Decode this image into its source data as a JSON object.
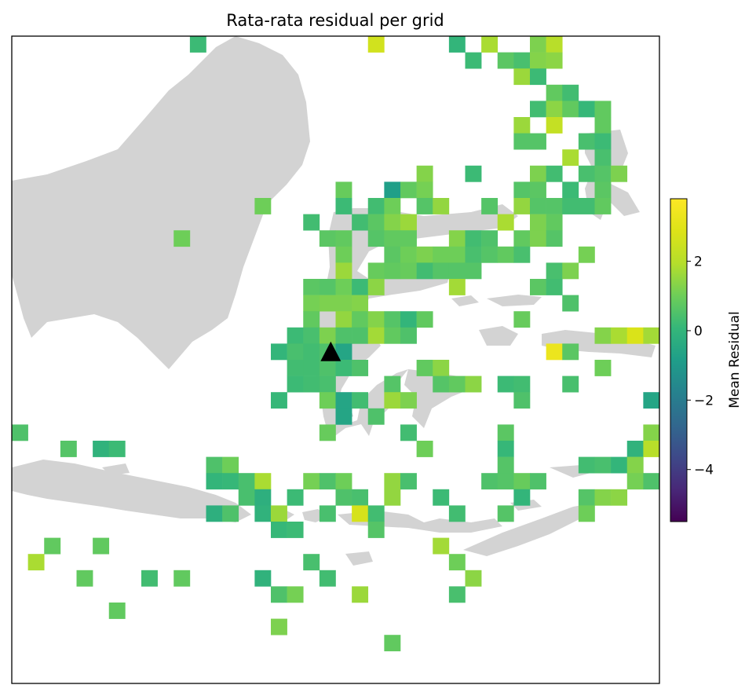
{
  "chart_data": {
    "type": "heatmap",
    "title": "Rata-rata residual per grid",
    "colorbar": {
      "label": "Mean Residual",
      "vmin": -5.5,
      "vmax": 3.8,
      "ticks": [
        2,
        0,
        -2,
        -4
      ],
      "tick_labels": [
        "2",
        "0",
        "−2",
        "−4"
      ],
      "colormap": "viridis"
    },
    "grid": {
      "cols": 40,
      "rows": 40,
      "cells": [
        [
          11,
          0,
          0.2
        ],
        [
          22,
          0,
          2.6
        ],
        [
          27,
          0,
          0.0
        ],
        [
          29,
          0,
          1.8
        ],
        [
          32,
          0,
          1.2
        ],
        [
          33,
          0,
          2.0
        ],
        [
          28,
          1,
          0.2
        ],
        [
          30,
          1,
          0.7
        ],
        [
          31,
          1,
          0.4
        ],
        [
          32,
          1,
          1.3
        ],
        [
          33,
          1,
          1.4
        ],
        [
          31,
          2,
          1.6
        ],
        [
          32,
          2,
          0.2
        ],
        [
          33,
          3,
          0.8
        ],
        [
          34,
          3,
          0.3
        ],
        [
          32,
          4,
          0.3
        ],
        [
          33,
          4,
          1.4
        ],
        [
          34,
          4,
          0.8
        ],
        [
          35,
          4,
          0.1
        ],
        [
          36,
          4,
          0.8
        ],
        [
          33,
          5,
          2.3
        ],
        [
          31,
          5,
          1.6
        ],
        [
          36,
          5,
          0.8
        ],
        [
          31,
          6,
          0.6
        ],
        [
          32,
          6,
          0.6
        ],
        [
          35,
          6,
          0.4
        ],
        [
          36,
          6,
          0.2
        ],
        [
          34,
          7,
          1.8
        ],
        [
          36,
          7,
          0.4
        ],
        [
          25,
          8,
          1.3
        ],
        [
          28,
          8,
          0.2
        ],
        [
          32,
          8,
          1.2
        ],
        [
          33,
          8,
          0.3
        ],
        [
          35,
          8,
          0.4
        ],
        [
          36,
          8,
          0.6
        ],
        [
          37,
          8,
          1.2
        ],
        [
          20,
          9,
          0.9
        ],
        [
          23,
          9,
          -0.8
        ],
        [
          24,
          9,
          0.8
        ],
        [
          25,
          9,
          1.1
        ],
        [
          31,
          9,
          0.6
        ],
        [
          32,
          9,
          0.7
        ],
        [
          34,
          9,
          0.2
        ],
        [
          36,
          9,
          0.7
        ],
        [
          15,
          10,
          1.0
        ],
        [
          20,
          10,
          0.2
        ],
        [
          22,
          10,
          0.3
        ],
        [
          23,
          10,
          1.0
        ],
        [
          25,
          10,
          0.6
        ],
        [
          26,
          10,
          1.5
        ],
        [
          29,
          10,
          0.6
        ],
        [
          31,
          10,
          1.5
        ],
        [
          32,
          10,
          0.6
        ],
        [
          33,
          10,
          0.6
        ],
        [
          34,
          10,
          0.3
        ],
        [
          35,
          10,
          0.3
        ],
        [
          36,
          10,
          0.8
        ],
        [
          18,
          11,
          0.3
        ],
        [
          21,
          11,
          0.3
        ],
        [
          22,
          11,
          0.7
        ],
        [
          23,
          11,
          1.3
        ],
        [
          24,
          11,
          1.6
        ],
        [
          30,
          11,
          1.8
        ],
        [
          32,
          11,
          1.2
        ],
        [
          33,
          11,
          0.8
        ],
        [
          10,
          12,
          1.0
        ],
        [
          19,
          12,
          0.7
        ],
        [
          20,
          12,
          0.8
        ],
        [
          22,
          12,
          0.6
        ],
        [
          23,
          12,
          0.8
        ],
        [
          24,
          12,
          0.8
        ],
        [
          27,
          12,
          1.3
        ],
        [
          28,
          12,
          0.3
        ],
        [
          29,
          12,
          0.5
        ],
        [
          31,
          12,
          0.8
        ],
        [
          32,
          12,
          1.2
        ],
        [
          33,
          12,
          0.6
        ],
        [
          20,
          13,
          1.0
        ],
        [
          23,
          13,
          0.7
        ],
        [
          24,
          13,
          1.0
        ],
        [
          25,
          13,
          1.2
        ],
        [
          26,
          13,
          1.0
        ],
        [
          27,
          13,
          1.0
        ],
        [
          28,
          13,
          0.4
        ],
        [
          29,
          13,
          0.6
        ],
        [
          30,
          13,
          0.8
        ],
        [
          31,
          13,
          0.4
        ],
        [
          35,
          13,
          1.1
        ],
        [
          20,
          14,
          1.6
        ],
        [
          22,
          14,
          0.9
        ],
        [
          23,
          14,
          0.8
        ],
        [
          24,
          14,
          0.9
        ],
        [
          25,
          14,
          0.3
        ],
        [
          26,
          14,
          0.6
        ],
        [
          27,
          14,
          0.6
        ],
        [
          28,
          14,
          0.6
        ],
        [
          33,
          14,
          0.4
        ],
        [
          34,
          14,
          1.2
        ],
        [
          18,
          15,
          0.7
        ],
        [
          19,
          15,
          0.6
        ],
        [
          20,
          15,
          1.0
        ],
        [
          21,
          15,
          0.2
        ],
        [
          22,
          15,
          1.4
        ],
        [
          27,
          15,
          1.7
        ],
        [
          32,
          15,
          0.7
        ],
        [
          33,
          15,
          0.3
        ],
        [
          18,
          16,
          1.1
        ],
        [
          19,
          16,
          1.2
        ],
        [
          20,
          16,
          1.2
        ],
        [
          21,
          16,
          1.3
        ],
        [
          34,
          16,
          0.5
        ],
        [
          18,
          17,
          0.8
        ],
        [
          20,
          17,
          1.5
        ],
        [
          21,
          17,
          0.8
        ],
        [
          22,
          17,
          1.3
        ],
        [
          23,
          17,
          0.6
        ],
        [
          24,
          17,
          0.0
        ],
        [
          25,
          17,
          0.8
        ],
        [
          31,
          17,
          0.9
        ],
        [
          17,
          18,
          0.2
        ],
        [
          18,
          18,
          0.4
        ],
        [
          19,
          18,
          1.2
        ],
        [
          20,
          18,
          0.5
        ],
        [
          21,
          18,
          0.5
        ],
        [
          22,
          18,
          1.7
        ],
        [
          23,
          18,
          0.8
        ],
        [
          24,
          18,
          0.5
        ],
        [
          36,
          18,
          1.3
        ],
        [
          37,
          18,
          1.8
        ],
        [
          38,
          18,
          2.8
        ],
        [
          39,
          18,
          1.7
        ],
        [
          16,
          19,
          0.0
        ],
        [
          17,
          19,
          0.4
        ],
        [
          18,
          19,
          0.3
        ],
        [
          19,
          19,
          0.5
        ],
        [
          20,
          19,
          -0.6
        ],
        [
          33,
          19,
          3.3
        ],
        [
          34,
          19,
          0.7
        ],
        [
          17,
          20,
          0.3
        ],
        [
          18,
          20,
          0.3
        ],
        [
          19,
          20,
          0.5
        ],
        [
          20,
          20,
          0.2
        ],
        [
          21,
          20,
          0.5
        ],
        [
          25,
          20,
          0.8
        ],
        [
          26,
          20,
          1.4
        ],
        [
          36,
          20,
          1.0
        ],
        [
          17,
          21,
          0.2
        ],
        [
          18,
          21,
          0.3
        ],
        [
          19,
          21,
          0.4
        ],
        [
          23,
          21,
          0.6
        ],
        [
          26,
          21,
          0.6
        ],
        [
          27,
          21,
          0.8
        ],
        [
          28,
          21,
          1.4
        ],
        [
          30,
          21,
          0.2
        ],
        [
          31,
          21,
          0.3
        ],
        [
          34,
          21,
          0.4
        ],
        [
          16,
          22,
          0.1
        ],
        [
          19,
          22,
          1.0
        ],
        [
          20,
          22,
          -0.6
        ],
        [
          21,
          22,
          0.3
        ],
        [
          23,
          22,
          1.6
        ],
        [
          24,
          22,
          1.2
        ],
        [
          31,
          22,
          0.5
        ],
        [
          39,
          22,
          -0.6
        ],
        [
          20,
          23,
          -0.6
        ],
        [
          22,
          23,
          0.5
        ],
        [
          0,
          24,
          0.5
        ],
        [
          19,
          24,
          0.9
        ],
        [
          24,
          24,
          0.3
        ],
        [
          30,
          24,
          0.7
        ],
        [
          39,
          24,
          1.3
        ],
        [
          3,
          25,
          0.6
        ],
        [
          5,
          25,
          -0.1
        ],
        [
          6,
          25,
          0.2
        ],
        [
          25,
          25,
          1.0
        ],
        [
          30,
          25,
          0.1
        ],
        [
          38,
          25,
          -0.1
        ],
        [
          39,
          25,
          2.0
        ],
        [
          12,
          26,
          0.5
        ],
        [
          13,
          26,
          1.0
        ],
        [
          30,
          26,
          0.6
        ],
        [
          35,
          26,
          0.3
        ],
        [
          36,
          26,
          0.4
        ],
        [
          37,
          26,
          0.0
        ],
        [
          38,
          26,
          1.3
        ],
        [
          12,
          27,
          0.0
        ],
        [
          13,
          27,
          0.1
        ],
        [
          14,
          27,
          0.4
        ],
        [
          15,
          27,
          1.8
        ],
        [
          18,
          27,
          1.1
        ],
        [
          19,
          27,
          0.5
        ],
        [
          20,
          27,
          1.0
        ],
        [
          23,
          27,
          1.5
        ],
        [
          24,
          27,
          0.4
        ],
        [
          29,
          27,
          0.5
        ],
        [
          30,
          27,
          0.6
        ],
        [
          31,
          27,
          0.9
        ],
        [
          32,
          27,
          0.5
        ],
        [
          38,
          27,
          1.1
        ],
        [
          39,
          27,
          0.5
        ],
        [
          14,
          28,
          0.4
        ],
        [
          15,
          28,
          -0.2
        ],
        [
          17,
          28,
          0.2
        ],
        [
          20,
          28,
          0.5
        ],
        [
          21,
          28,
          0.4
        ],
        [
          23,
          28,
          1.5
        ],
        [
          26,
          28,
          0.2
        ],
        [
          31,
          28,
          0.0
        ],
        [
          35,
          28,
          0.6
        ],
        [
          36,
          28,
          1.3
        ],
        [
          37,
          28,
          1.4
        ],
        [
          12,
          29,
          -0.2
        ],
        [
          13,
          29,
          0.5
        ],
        [
          15,
          29,
          -0.1
        ],
        [
          16,
          29,
          1.6
        ],
        [
          19,
          29,
          0.4
        ],
        [
          21,
          29,
          2.7
        ],
        [
          22,
          29,
          0.3
        ],
        [
          27,
          29,
          0.3
        ],
        [
          30,
          29,
          0.6
        ],
        [
          35,
          29,
          1.0
        ],
        [
          16,
          30,
          0.1
        ],
        [
          17,
          30,
          0.2
        ],
        [
          22,
          30,
          0.6
        ],
        [
          2,
          31,
          0.8
        ],
        [
          5,
          31,
          0.8
        ],
        [
          26,
          31,
          1.7
        ],
        [
          1,
          32,
          1.8
        ],
        [
          18,
          32,
          0.4
        ],
        [
          27,
          32,
          1.0
        ],
        [
          4,
          33,
          0.8
        ],
        [
          8,
          33,
          0.3
        ],
        [
          10,
          33,
          0.8
        ],
        [
          15,
          33,
          -0.1
        ],
        [
          19,
          33,
          0.3
        ],
        [
          28,
          33,
          1.4
        ],
        [
          16,
          34,
          0.5
        ],
        [
          17,
          34,
          1.1
        ],
        [
          21,
          34,
          1.6
        ],
        [
          27,
          34,
          0.4
        ],
        [
          6,
          35,
          0.8
        ],
        [
          16,
          36,
          1.2
        ],
        [
          23,
          37,
          0.8
        ]
      ]
    },
    "marker": {
      "shape": "triangle",
      "color": "#000000",
      "col": 19.7,
      "row": 19.5
    }
  }
}
